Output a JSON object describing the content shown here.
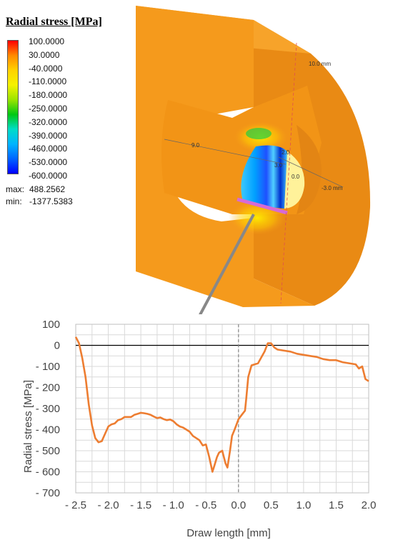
{
  "legend": {
    "title": "Radial stress [MPa]",
    "ticks": [
      "100.0000",
      "30.0000",
      "-40.0000",
      "-110.0000",
      "-180.0000",
      "-250.0000",
      "-320.0000",
      "-390.0000",
      "-460.0000",
      "-530.0000",
      "-600.0000"
    ],
    "max_label": "max:",
    "max_value": "488.2562",
    "min_label": "min:",
    "min_value": "-1377.5383",
    "colors": [
      "#ff0000",
      "#ff8a00",
      "#ffd200",
      "#f5f200",
      "#9ae400",
      "#00c814",
      "#00dcc8",
      "#00b4ff",
      "#0064ff",
      "#0000ff"
    ]
  },
  "model": {
    "dim_labels": [
      "10.0 mm",
      "9.0",
      "3.0",
      "2.0",
      "0.0",
      "-3.0 mm"
    ],
    "colors": {
      "body": "#f59a1c",
      "body_dark": "#e08412",
      "body_light": "#fbb040",
      "marker": "#d66ad6"
    }
  },
  "chart_data": {
    "type": "line",
    "xlabel": "Draw length [mm]",
    "ylabel": "Radial stress [MPa]",
    "xlim": [
      -2.5,
      2.0
    ],
    "ylim": [
      -700,
      100
    ],
    "xticks": [
      -2.5,
      -2.0,
      -1.5,
      -1.0,
      -0.5,
      0.0,
      0.5,
      1.0,
      1.5,
      2.0
    ],
    "xtick_labels": [
      "- 2.5",
      "- 2.0",
      "- 1.5",
      "- 1.0",
      "- 0.5",
      "0.0",
      "0.5",
      "1.0",
      "1.5",
      "2.0"
    ],
    "yticks": [
      100,
      0,
      -100,
      -200,
      -300,
      -400,
      -500,
      -600,
      -700
    ],
    "ytick_labels": [
      "100",
      "0",
      "- 100",
      "- 200",
      "- 300",
      "- 400",
      "- 500",
      "- 600",
      "- 700"
    ],
    "grid": true,
    "vline_x": 0.0,
    "series": [
      {
        "color": "#ed7d31",
        "x": [
          -2.5,
          -2.45,
          -2.4,
          -2.35,
          -2.3,
          -2.25,
          -2.2,
          -2.15,
          -2.1,
          -2.05,
          -2.0,
          -1.95,
          -1.9,
          -1.85,
          -1.8,
          -1.75,
          -1.7,
          -1.65,
          -1.6,
          -1.55,
          -1.5,
          -1.45,
          -1.4,
          -1.35,
          -1.3,
          -1.25,
          -1.2,
          -1.15,
          -1.1,
          -1.05,
          -1.0,
          -0.95,
          -0.9,
          -0.85,
          -0.8,
          -0.75,
          -0.7,
          -0.65,
          -0.6,
          -0.55,
          -0.5,
          -0.45,
          -0.4,
          -0.37,
          -0.33,
          -0.3,
          -0.25,
          -0.2,
          -0.17,
          -0.13,
          -0.1,
          -0.06,
          0.0,
          0.05,
          0.1,
          0.12,
          0.15,
          0.2,
          0.3,
          0.4,
          0.45,
          0.5,
          0.55,
          0.6,
          0.7,
          0.8,
          0.9,
          1.0,
          1.1,
          1.2,
          1.3,
          1.4,
          1.5,
          1.6,
          1.7,
          1.8,
          1.85,
          1.9,
          1.95,
          2.0
        ],
        "y": [
          40,
          10,
          -60,
          -150,
          -280,
          -380,
          -440,
          -460,
          -455,
          -420,
          -385,
          -375,
          -370,
          -355,
          -350,
          -340,
          -340,
          -340,
          -330,
          -325,
          -320,
          -322,
          -325,
          -330,
          -338,
          -345,
          -342,
          -350,
          -355,
          -352,
          -360,
          -375,
          -385,
          -390,
          -400,
          -410,
          -430,
          -440,
          -450,
          -475,
          -470,
          -530,
          -600,
          -570,
          -530,
          -510,
          -500,
          -560,
          -580,
          -500,
          -430,
          -400,
          -350,
          -330,
          -310,
          -250,
          -150,
          -95,
          -85,
          -30,
          10,
          10,
          -10,
          -20,
          -25,
          -30,
          -40,
          -45,
          -50,
          -55,
          -65,
          -70,
          -70,
          -80,
          -85,
          -90,
          -110,
          -100,
          -160,
          -170
        ]
      }
    ]
  }
}
